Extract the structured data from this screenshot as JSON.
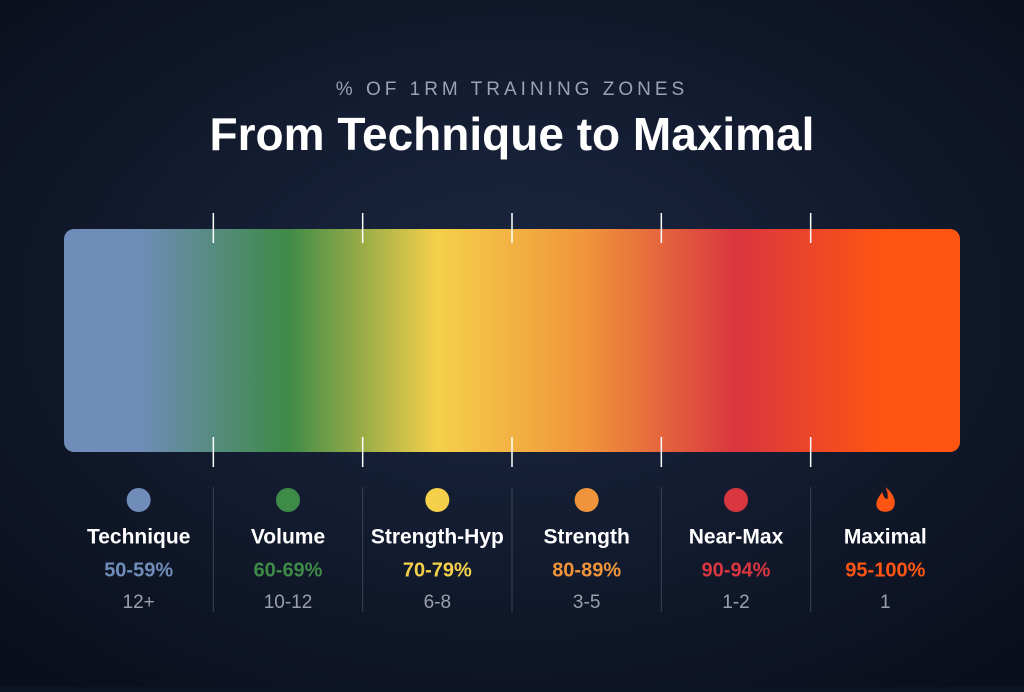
{
  "header": {
    "kicker": "% OF 1RM TRAINING ZONES",
    "title": "From Technique to Maximal"
  },
  "zones": [
    {
      "name": "Technique",
      "range": "50-59%",
      "reps": "12+",
      "color": "#6f8db8"
    },
    {
      "name": "Volume",
      "range": "60-69%",
      "reps": "10-12",
      "color": "#3e8a47"
    },
    {
      "name": "Strength-Hyp",
      "range": "70-79%",
      "reps": "6-8",
      "color": "#f5d04a"
    },
    {
      "name": "Strength",
      "range": "80-89%",
      "reps": "3-5",
      "color": "#f0943b"
    },
    {
      "name": "Near-Max",
      "range": "90-94%",
      "reps": "1-2",
      "color": "#d9363f"
    },
    {
      "name": "Maximal",
      "range": "95-100%",
      "reps": "1",
      "color": "#ff5512"
    }
  ]
}
